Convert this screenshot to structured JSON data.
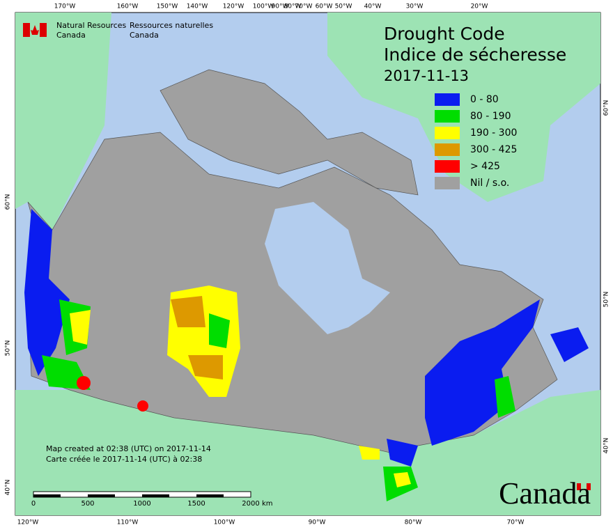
{
  "header": {
    "agency_en": [
      "Natural Resources",
      "Canada"
    ],
    "agency_fr": [
      "Ressources naturelles",
      "Canada"
    ]
  },
  "title": [
    "Drought Code",
    "Indice de sécheresse",
    "2017-11-13"
  ],
  "legend": [
    {
      "label": "0 - 80",
      "color": "#0a1cf0"
    },
    {
      "label": "80 - 190",
      "color": "#00dd00"
    },
    {
      "label": "190 - 300",
      "color": "#ffff00"
    },
    {
      "label": "300 - 425",
      "color": "#dd9900"
    },
    {
      "label": "> 425",
      "color": "#ff0000"
    },
    {
      "label": "Nil / s.o.",
      "color": "#a0a0a0"
    }
  ],
  "graticule": {
    "top": [
      "170°W",
      "160°W",
      "150°W",
      "140°W",
      "120°W",
      "100°W",
      "90°W",
      "80°W",
      "70°W",
      "60°W",
      "50°W",
      "40°W",
      "30°W",
      "20°W"
    ],
    "bottom": [
      "120°W",
      "110°W",
      "100°W",
      "90°W",
      "80°W",
      "70°W"
    ],
    "left": [
      "60°N",
      "50°N",
      "40°N"
    ],
    "right": [
      "60°N",
      "50°N",
      "40°N"
    ]
  },
  "scale_bar": {
    "labels": [
      "0",
      "500",
      "1000",
      "1500",
      "2000"
    ],
    "unit": "km"
  },
  "credits": [
    "Map created at 02:38 (UTC) on 2017-11-14",
    "Carte créée le 2017-11-14 (UTC) à 02:38"
  ],
  "wordmark": "Canada"
}
